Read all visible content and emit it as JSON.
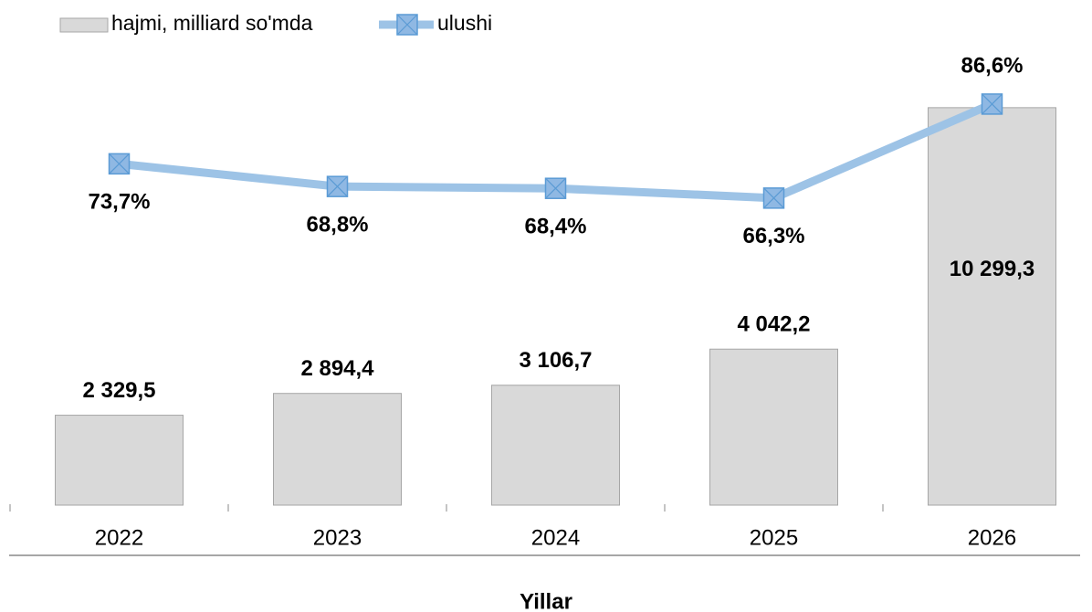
{
  "chart_data": {
    "type": "bar",
    "categories": [
      "2022",
      "2023",
      "2024",
      "2025",
      "2026"
    ],
    "xlabel": "Yillar",
    "series": [
      {
        "name": "hajmi, milliard so'mda",
        "type": "bar",
        "color": "#d9d9d9",
        "values": [
          2329.5,
          2894.4,
          3106.7,
          4042.2,
          10299.3
        ],
        "value_labels": [
          "2 329,5",
          "2 894,4",
          "3 106,7",
          "4 042,2",
          "10 299,3"
        ]
      },
      {
        "name": "ulushi",
        "type": "line",
        "axis": "y2",
        "color": "#9dc3e6",
        "values": [
          73.7,
          68.8,
          68.4,
          66.3,
          86.6
        ],
        "value_labels": [
          "73,7%",
          "68,8%",
          "68,4%",
          "66,3%",
          "86,6%"
        ]
      }
    ],
    "ylim": [
      0,
      12000
    ],
    "y2lim": [
      0,
      100
    ],
    "legend": "top-left"
  }
}
